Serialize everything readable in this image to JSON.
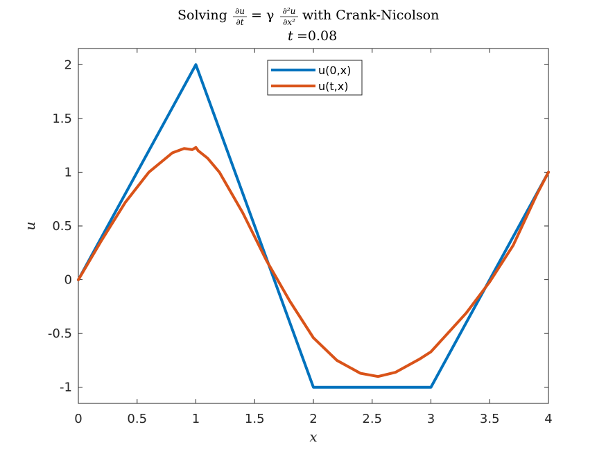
{
  "chart_data": {
    "type": "line",
    "title": "Solving ∂u/∂t = γ ∂²u/∂x² with Crank-Nicolson",
    "title_parts": {
      "prefix": "Solving",
      "dudt_num": "∂u",
      "dudt_den": "∂t",
      "eq_gamma": "= γ",
      "d2u_num": "∂²u",
      "d2u_den": "∂x²",
      "suffix": "with Crank-Nicolson"
    },
    "subtitle_var": "t",
    "subtitle_value": "=0.08",
    "xlabel": "x",
    "ylabel": "u",
    "xlim": [
      0,
      4
    ],
    "ylim": [
      -1.15,
      2.15
    ],
    "xticks": [
      0,
      0.5,
      1,
      1.5,
      2,
      2.5,
      3,
      3.5,
      4
    ],
    "xtick_labels": [
      "0",
      "0.5",
      "1",
      "1.5",
      "2",
      "2.5",
      "3",
      "3.5",
      "4"
    ],
    "yticks": [
      -1,
      -0.5,
      0,
      0.5,
      1,
      1.5,
      2
    ],
    "ytick_labels": [
      "-1",
      "-0.5",
      "0",
      "0.5",
      "1",
      "1.5",
      "2"
    ],
    "grid": false,
    "legend_position": "top-center",
    "series": [
      {
        "name": "u(0,x)",
        "color": "#0072BD",
        "x": [
          0,
          1,
          2,
          3,
          4
        ],
        "y": [
          0,
          2,
          -1,
          -1,
          1
        ]
      },
      {
        "name": "u(t,x)",
        "color": "#D95319",
        "x": [
          0,
          0.2,
          0.4,
          0.6,
          0.8,
          0.9,
          0.97,
          1.0,
          1.02,
          1.1,
          1.2,
          1.4,
          1.6,
          1.8,
          2.0,
          2.2,
          2.4,
          2.55,
          2.7,
          2.9,
          3.0,
          3.1,
          3.3,
          3.5,
          3.7,
          3.9,
          4.0
        ],
        "y": [
          0,
          0.37,
          0.72,
          1.0,
          1.18,
          1.22,
          1.21,
          1.23,
          1.2,
          1.13,
          1.0,
          0.62,
          0.18,
          -0.2,
          -0.54,
          -0.75,
          -0.87,
          -0.9,
          -0.86,
          -0.74,
          -0.67,
          -0.55,
          -0.31,
          -0.02,
          0.32,
          0.79,
          1.0
        ]
      }
    ]
  }
}
